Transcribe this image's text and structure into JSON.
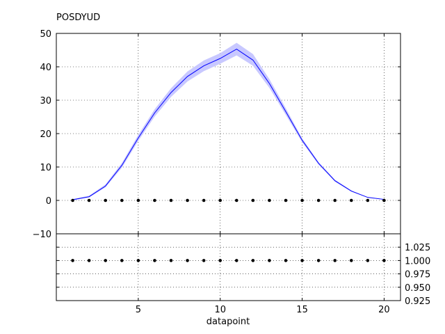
{
  "chart_data": {
    "type": "line",
    "title": "POSDYUD",
    "xlabel": "datapoint",
    "x": [
      1,
      2,
      3,
      4,
      5,
      6,
      7,
      8,
      9,
      10,
      11,
      12,
      13,
      14,
      15,
      16,
      17,
      18,
      19,
      20
    ],
    "xlim": [
      0,
      21
    ],
    "xticks": [
      5,
      10,
      15,
      20
    ],
    "grid": true,
    "main": {
      "ylim": [
        -10,
        50
      ],
      "yticks": [
        -10,
        0,
        10,
        20,
        30,
        40,
        50
      ],
      "line_color": "#0000ff",
      "band_color": "#c8c8ff",
      "series": [
        {
          "values": [
            0.2,
            1.1,
            4.3,
            10.5,
            18.7,
            26.2,
            32.3,
            37.1,
            40.3,
            42.5,
            45.3,
            42.0,
            35.0,
            26.6,
            18.0,
            11.1,
            5.9,
            2.8,
            0.9,
            0.3
          ],
          "band_lower": [
            0.0,
            0.9,
            3.9,
            9.8,
            17.8,
            25.1,
            31.0,
            35.6,
            38.7,
            40.9,
            43.4,
            40.3,
            33.7,
            25.6,
            17.4,
            10.7,
            5.6,
            2.6,
            0.8,
            0.2
          ],
          "band_upper": [
            0.4,
            1.4,
            4.8,
            11.2,
            19.6,
            27.3,
            33.6,
            38.6,
            41.9,
            44.1,
            47.2,
            43.8,
            36.3,
            27.6,
            18.6,
            11.5,
            6.2,
            3.0,
            1.0,
            0.4
          ]
        }
      ],
      "points": {
        "color": "#000000",
        "values": [
          0,
          0,
          0,
          0,
          0,
          0,
          0,
          0,
          0,
          0,
          0,
          0,
          0,
          0,
          0,
          0,
          0,
          0,
          0,
          0
        ]
      }
    },
    "ratio": {
      "ylim": [
        0.925,
        1.05
      ],
      "yticks": [
        0.925,
        0.95,
        0.975,
        1.0,
        1.025
      ],
      "ytick_labels": [
        "0.925",
        "0.950",
        "0.975",
        "1.000",
        "1.025"
      ],
      "values": [
        1,
        1,
        1,
        1,
        1,
        1,
        1,
        1,
        1,
        1,
        1,
        1,
        1,
        1,
        1,
        1,
        1,
        1,
        1,
        1
      ]
    }
  }
}
